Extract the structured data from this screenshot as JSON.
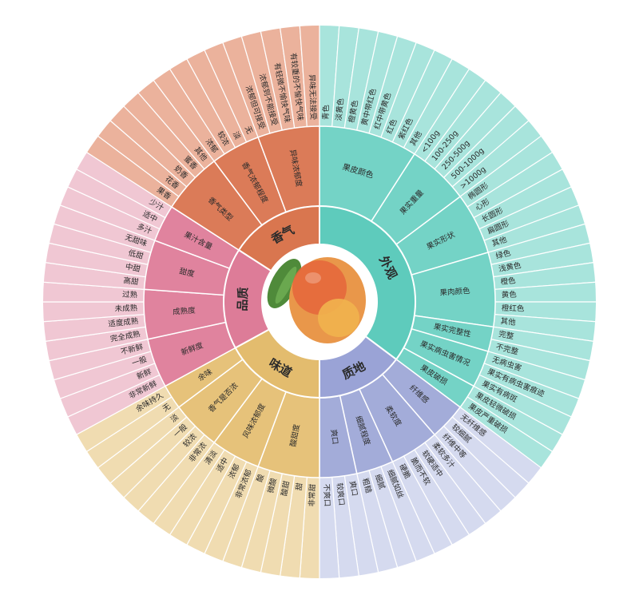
{
  "center_image": {
    "icon": "mango-fruit-illustration"
  },
  "categories": [
    {
      "name": "外观",
      "color": "#74d3c6",
      "inner_color": "#5ecbbc",
      "leaf_color": "#a8e4dc",
      "subs": [
        {
          "name": "果皮颜色",
          "leaves": [
            "青色",
            "淡黄色",
            "橙黄色",
            "黄中带红色",
            "红中带黄色",
            "红色",
            "紫红色",
            "其他"
          ]
        },
        {
          "name": "果实重量",
          "leaves": [
            "<100g",
            "100-250g",
            "250-500g",
            "500-1000g",
            ">1000g"
          ]
        },
        {
          "name": "果实形状",
          "leaves": [
            "椭圆形",
            "心形",
            "长圆形",
            "扁圆形",
            "其他"
          ]
        },
        {
          "name": "果肉颜色",
          "leaves": [
            "绿色",
            "浅黄色",
            "橙色",
            "黄色",
            "橙红色",
            "其他"
          ]
        },
        {
          "name": "果实完整性",
          "leaves": [
            "完整",
            "不完整"
          ]
        },
        {
          "name": "果实病虫害情况",
          "leaves": [
            "无病虫害",
            "果实有病虫害痕迹",
            "果实有病斑"
          ]
        },
        {
          "name": "果皮破损",
          "leaves": [
            "果皮轻微破损",
            "果皮严重破损"
          ]
        }
      ]
    },
    {
      "name": "质地",
      "color": "#a3acd9",
      "inner_color": "#9aa3d6",
      "leaf_color": "#d5daef",
      "subs": [
        {
          "name": "纤维感",
          "leaves": [
            "无纤维感",
            "较细腻",
            "纤维中等"
          ]
        },
        {
          "name": "柔软度",
          "leaves": [
            "柔软多汁",
            "软硬适中",
            "脆而不软",
            "硬脆"
          ]
        },
        {
          "name": "细腻程度",
          "leaves": [
            "细腻如丝",
            "细腻",
            "粗糙"
          ]
        },
        {
          "name": "爽口",
          "leaves": [
            "爽口",
            "较爽口",
            "不爽口"
          ]
        }
      ]
    },
    {
      "name": "味道",
      "color": "#e6c27a",
      "inner_color": "#e3bc6e",
      "leaf_color": "#f0dcb1",
      "subs": [
        {
          "name": "酸甜度",
          "leaves": [
            "非常甜",
            "甜",
            "酸甜",
            "微酸",
            "酸"
          ]
        },
        {
          "name": "风味浓郁度",
          "leaves": [
            "非常浓郁",
            "浓郁",
            "适中",
            "清淡"
          ]
        },
        {
          "name": "香气是否浓",
          "leaves": [
            "非常浓",
            "较浓",
            "一般",
            "淡"
          ]
        },
        {
          "name": "余味",
          "leaves": [
            "无",
            "余味持久"
          ]
        }
      ]
    },
    {
      "name": "品质",
      "color": "#e0839e",
      "inner_color": "#dd7c98",
      "leaf_color": "#f0c7d3",
      "subs": [
        {
          "name": "新鲜度",
          "leaves": [
            "非常新鲜",
            "新鲜",
            "一般",
            "不新鲜"
          ]
        },
        {
          "name": "成熟度",
          "leaves": [
            "完全成熟",
            "适度成熟",
            "未成熟",
            "过熟"
          ]
        },
        {
          "name": "甜度",
          "leaves": [
            "高甜",
            "中甜",
            "低甜",
            "无甜味"
          ]
        },
        {
          "name": "果汁含量",
          "leaves": [
            "多汁",
            "适中",
            "少汁"
          ]
        }
      ]
    },
    {
      "name": "香气",
      "color": "#db7b58",
      "inner_color": "#d9764f",
      "leaf_color": "#ebb29c",
      "subs": [
        {
          "name": "香气类型",
          "leaves": [
            "果香",
            "花香",
            "奶香",
            "蜜香",
            "其他"
          ]
        },
        {
          "name": "香气浓郁程度",
          "leaves": [
            "浓郁",
            "较浓",
            "淡",
            "无"
          ]
        },
        {
          "name": "异味浓郁度",
          "leaves": [
            "浓郁但可接受",
            "浓郁到不能接受",
            "有轻微不愉快气味",
            "有较重的不愉快气味",
            "异味无法接受"
          ]
        }
      ]
    }
  ]
}
